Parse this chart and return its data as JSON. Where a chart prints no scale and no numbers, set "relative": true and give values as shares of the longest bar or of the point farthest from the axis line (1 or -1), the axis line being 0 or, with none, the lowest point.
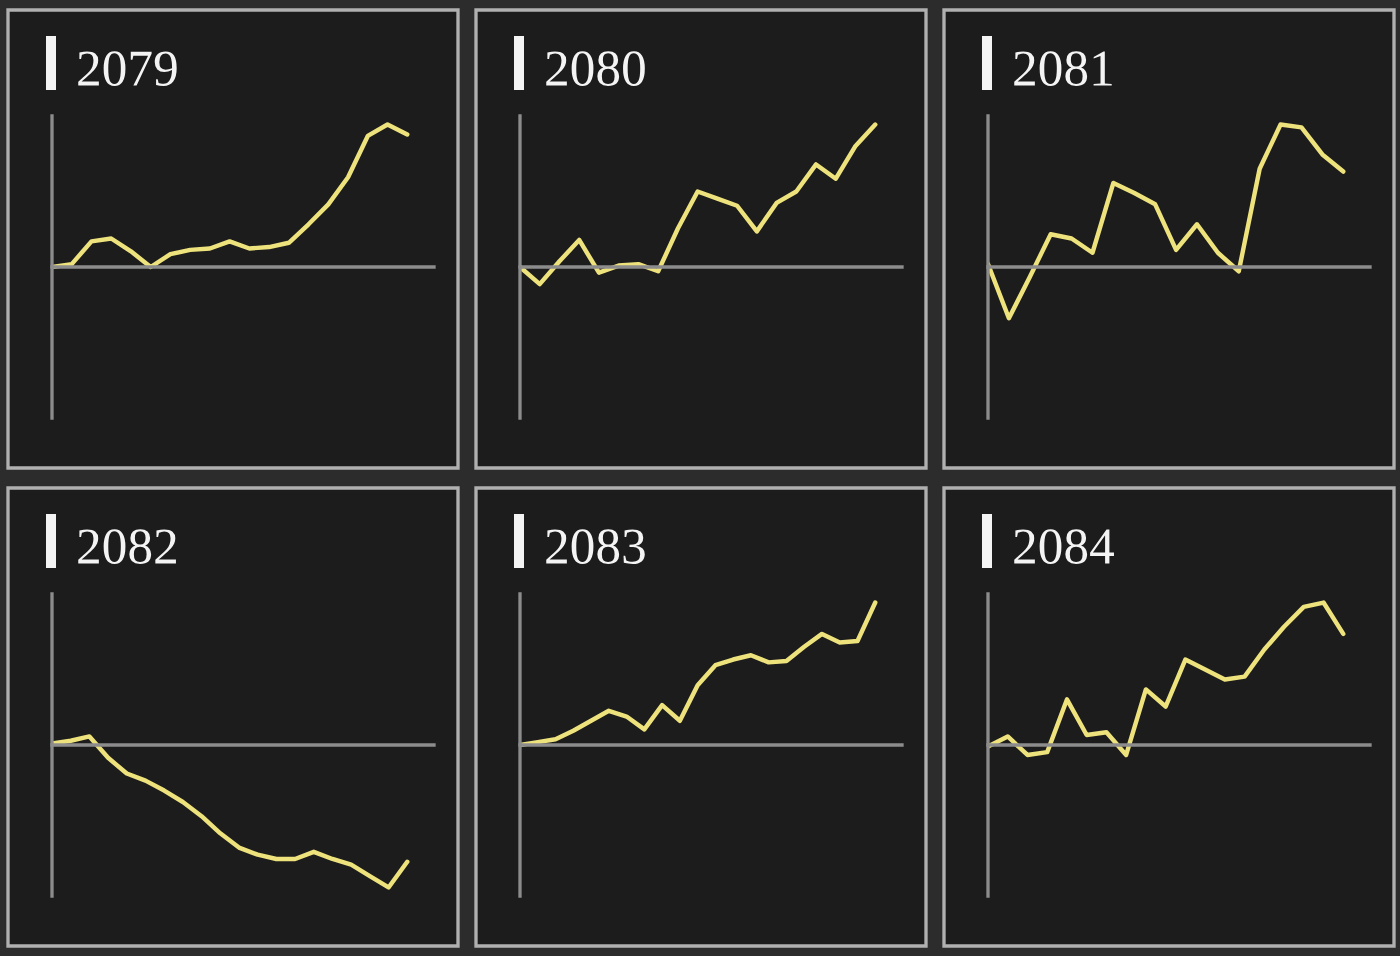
{
  "chart_data": [
    {
      "type": "line",
      "title": "2079",
      "relative": true,
      "categories": [
        null,
        null,
        null,
        null,
        null,
        null,
        null,
        null,
        null,
        null,
        null,
        null,
        null,
        null,
        null,
        null,
        null,
        null,
        null
      ],
      "series": [
        {
          "color": "#ede27c",
          "values": [
            0,
            0.02,
            0.18,
            0.2,
            0.11,
            0,
            0.09,
            0.12,
            0.13,
            0.18,
            0.13,
            0.14,
            0.17,
            0.3,
            0.44,
            0.63,
            0.92,
            1,
            0.93
          ]
        }
      ]
    },
    {
      "type": "line",
      "title": "2080",
      "relative": true,
      "categories": [
        null,
        null,
        null,
        null,
        null,
        null,
        null,
        null,
        null,
        null,
        null,
        null,
        null,
        null,
        null,
        null,
        null,
        null,
        null
      ],
      "series": [
        {
          "color": "#ede27c",
          "values": [
            0,
            -0.12,
            0.04,
            0.19,
            -0.04,
            0.01,
            0.02,
            -0.03,
            0.27,
            0.53,
            0.48,
            0.43,
            0.25,
            0.45,
            0.53,
            0.72,
            0.62,
            0.85,
            1
          ]
        }
      ]
    },
    {
      "type": "line",
      "title": "2081",
      "relative": true,
      "categories": [
        null,
        null,
        null,
        null,
        null,
        null,
        null,
        null,
        null,
        null,
        null,
        null,
        null,
        null,
        null,
        null,
        null,
        null
      ],
      "series": [
        {
          "color": "#ede27c",
          "values": [
            0.02,
            -0.36,
            -0.07,
            0.23,
            0.2,
            0.1,
            0.59,
            0.52,
            0.44,
            0.12,
            0.3,
            0.1,
            -0.03,
            0.69,
            1,
            0.98,
            0.79,
            0.67
          ]
        }
      ]
    },
    {
      "type": "line",
      "title": "2082",
      "relative": true,
      "categories": [
        null,
        null,
        null,
        null,
        null,
        null,
        null,
        null,
        null,
        null,
        null,
        null,
        null,
        null,
        null,
        null,
        null,
        null,
        null,
        null
      ],
      "series": [
        {
          "color": "#ede27c",
          "values": [
            0.01,
            0.03,
            0.06,
            -0.09,
            -0.2,
            -0.25,
            -0.32,
            -0.4,
            -0.5,
            -0.62,
            -0.72,
            -0.77,
            -0.8,
            -0.8,
            -0.75,
            -0.8,
            -0.84,
            -0.92,
            -1,
            -0.82
          ]
        }
      ]
    },
    {
      "type": "line",
      "title": "2083",
      "relative": true,
      "categories": [
        null,
        null,
        null,
        null,
        null,
        null,
        null,
        null,
        null,
        null,
        null,
        null,
        null,
        null,
        null,
        null,
        null,
        null,
        null,
        null,
        null
      ],
      "series": [
        {
          "color": "#ede27c",
          "values": [
            0,
            0.02,
            0.04,
            0.1,
            0.17,
            0.24,
            0.2,
            0.11,
            0.28,
            0.17,
            0.42,
            0.56,
            0.6,
            0.63,
            0.58,
            0.59,
            0.69,
            0.78,
            0.72,
            0.73,
            1
          ]
        }
      ]
    },
    {
      "type": "line",
      "title": "2084",
      "relative": true,
      "categories": [
        null,
        null,
        null,
        null,
        null,
        null,
        null,
        null,
        null,
        null,
        null,
        null,
        null,
        null,
        null,
        null,
        null,
        null,
        null
      ],
      "series": [
        {
          "color": "#ede27c",
          "values": [
            -0.01,
            0.06,
            -0.07,
            -0.05,
            0.32,
            0.07,
            0.09,
            -0.07,
            0.39,
            0.27,
            0.6,
            0.53,
            0.46,
            0.48,
            0.67,
            0.83,
            0.97,
            1,
            0.78
          ]
        }
      ]
    }
  ]
}
